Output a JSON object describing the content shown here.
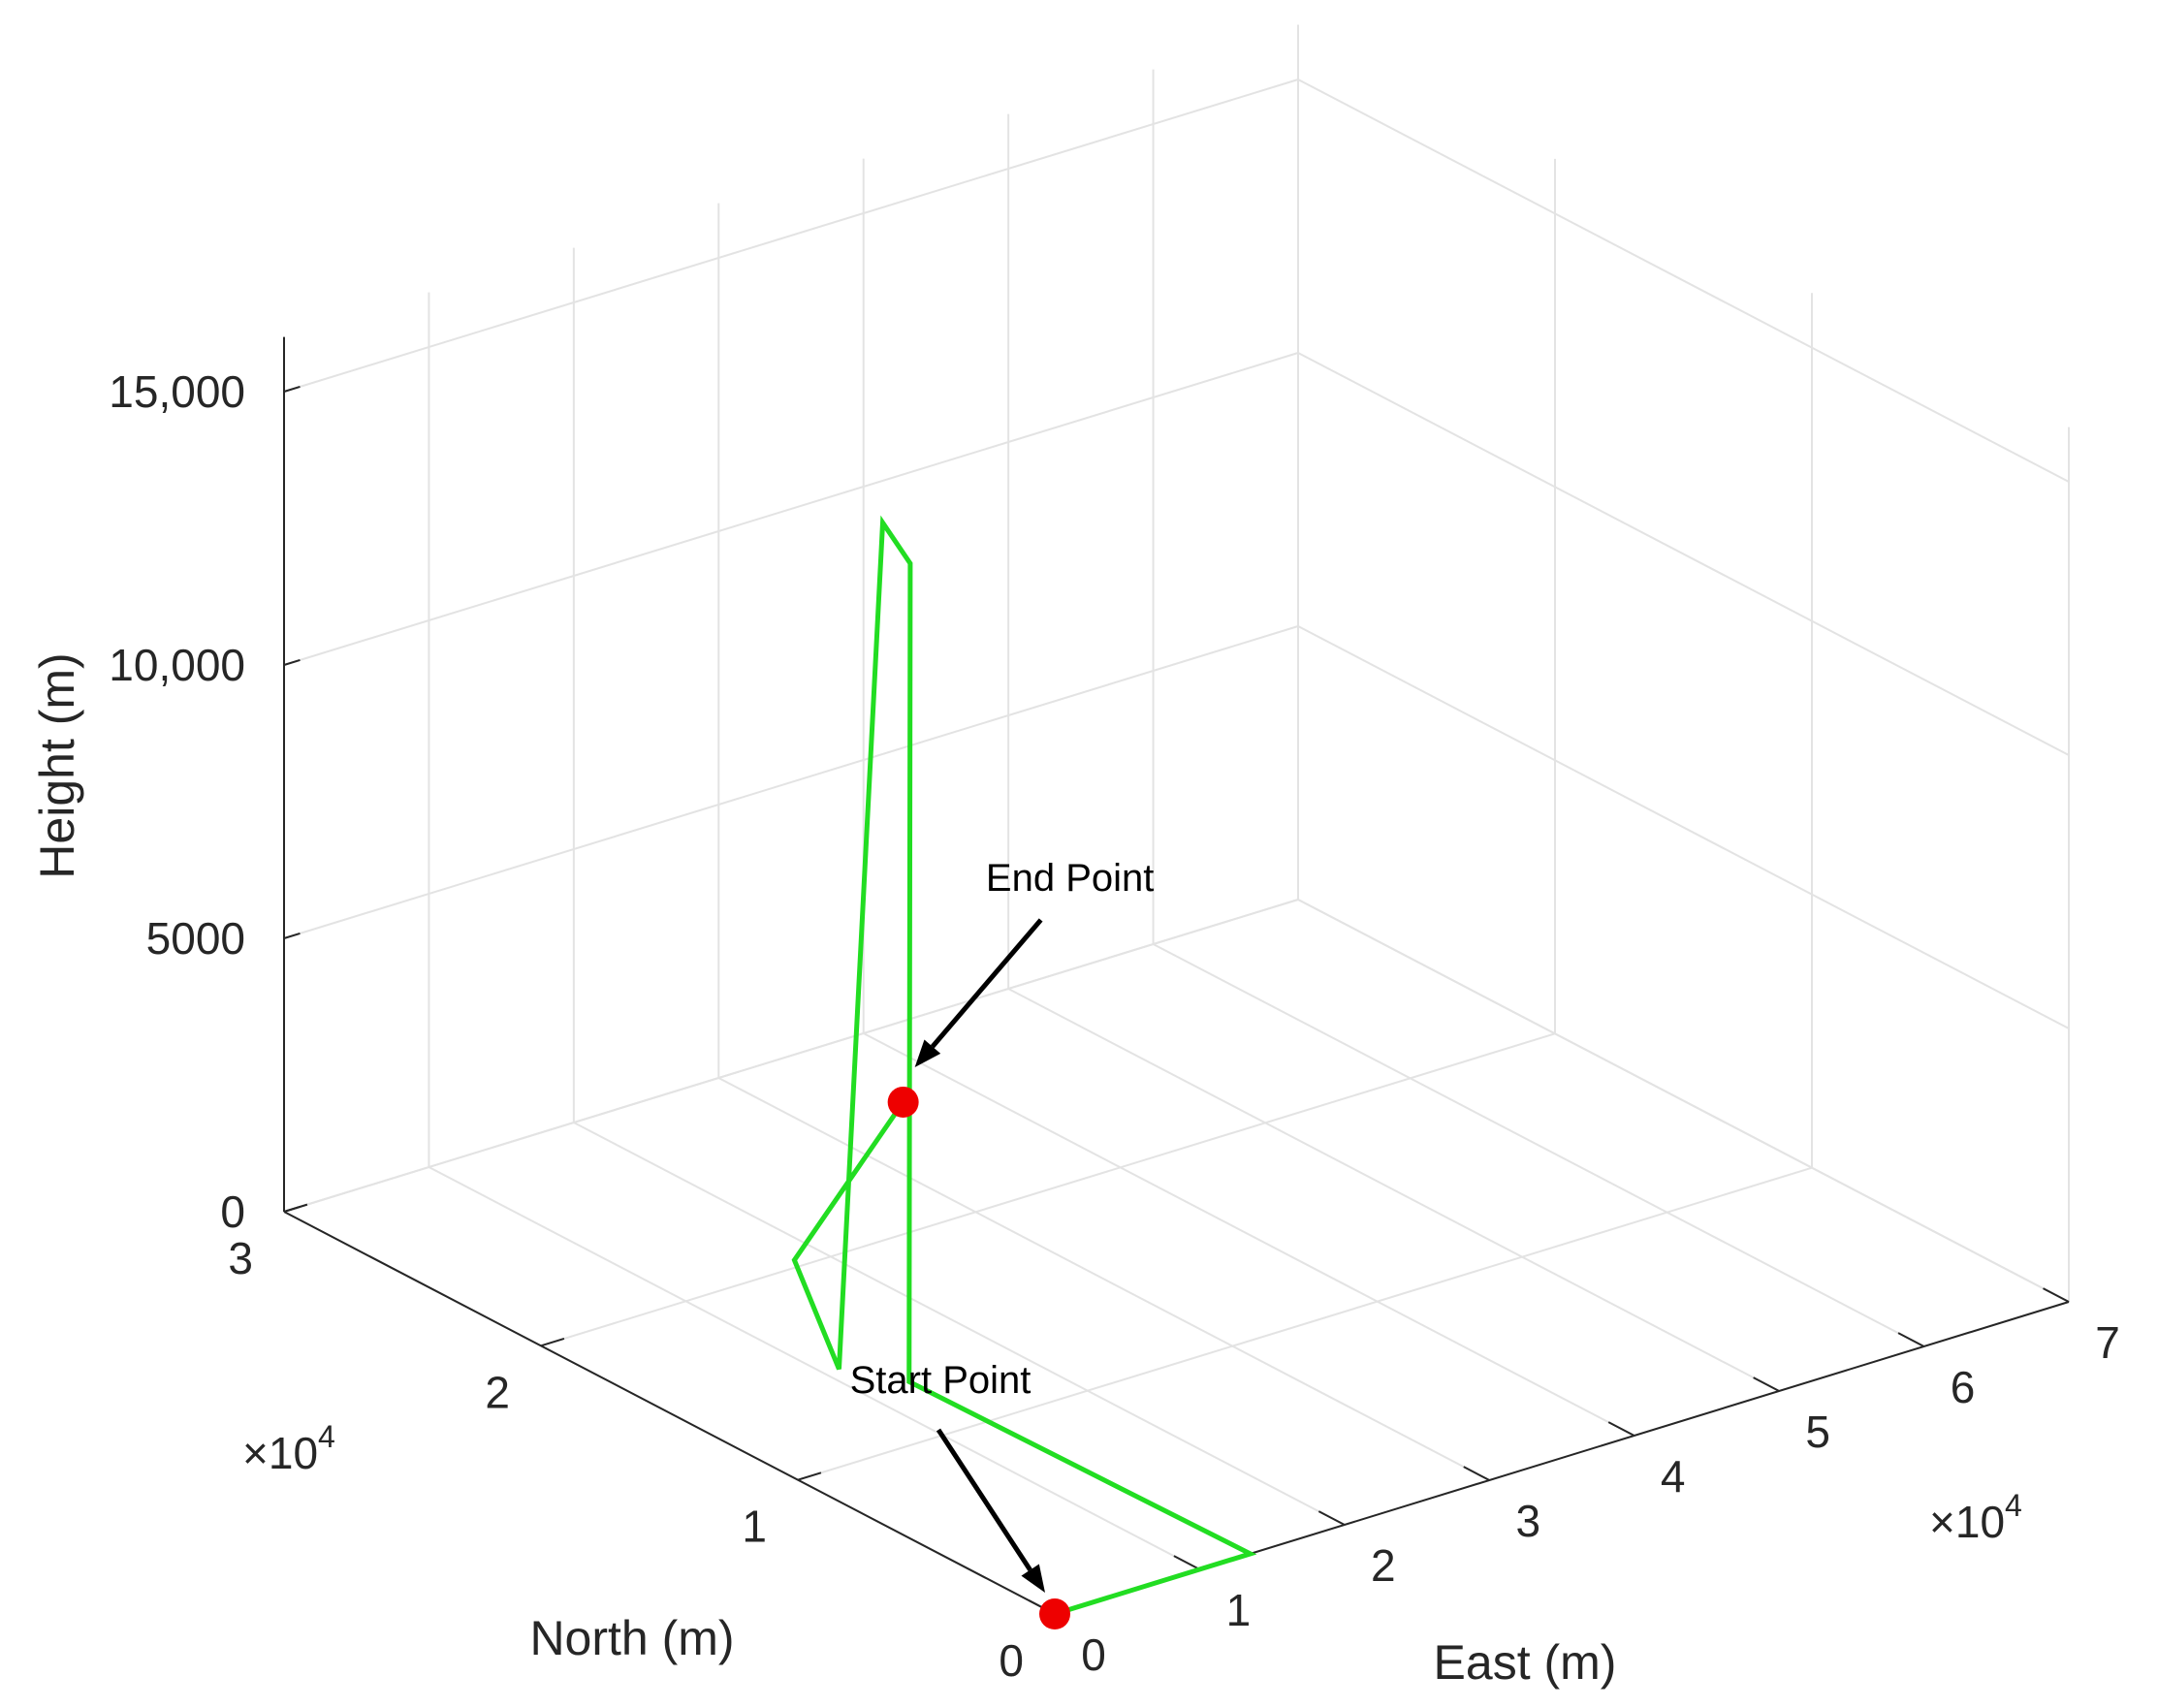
{
  "chart_data": {
    "type": "line3d",
    "xlabel": "East (m)",
    "ylabel": "North (m)",
    "zlabel": "Height (m)",
    "x_exponent": "×10",
    "x_exponent_power": "4",
    "y_exponent": "×10",
    "y_exponent_power": "4",
    "xlim": [
      0,
      70000
    ],
    "ylim": [
      0,
      30000
    ],
    "zlim": [
      0,
      16000
    ],
    "x_ticks": [
      0,
      10000,
      20000,
      30000,
      40000,
      50000,
      60000,
      70000
    ],
    "x_tick_labels": [
      "0",
      "1",
      "2",
      "3",
      "4",
      "5",
      "6",
      "7"
    ],
    "y_ticks": [
      0,
      10000,
      20000,
      30000
    ],
    "y_tick_labels": [
      "0",
      "1",
      "2",
      "3"
    ],
    "z_ticks": [
      0,
      5000,
      10000,
      15000
    ],
    "z_tick_labels": [
      "0",
      "5000",
      "10,000",
      "15,000"
    ],
    "grid": true,
    "series": [
      {
        "color": "#22dd22",
        "points": [
          {
            "x": 0,
            "y": 0,
            "z": 0
          },
          {
            "x": 13500,
            "y": 0,
            "z": 0
          },
          {
            "x": 13000,
            "y": 13000,
            "z": 0
          },
          {
            "x": 12900,
            "y": 12900,
            "z": 15000
          },
          {
            "x": 11000,
            "y": 12900,
            "z": 15900
          },
          {
            "x": 11000,
            "y": 14600,
            "z": 0
          },
          {
            "x": 10400,
            "y": 16000,
            "z": 1700
          },
          {
            "x": 36000,
            "y": 26200,
            "z": 0
          }
        ]
      }
    ],
    "markers": [
      {
        "name": "Start Point",
        "x": 0,
        "y": 0,
        "z": 0,
        "color": "#ee0000"
      },
      {
        "name": "End Point",
        "x": 36000,
        "y": 26200,
        "z": 0,
        "color": "#ee0000"
      }
    ],
    "annotations": [
      {
        "text": "Start Point",
        "target": "start"
      },
      {
        "text": "End Point",
        "target": "end"
      }
    ]
  }
}
